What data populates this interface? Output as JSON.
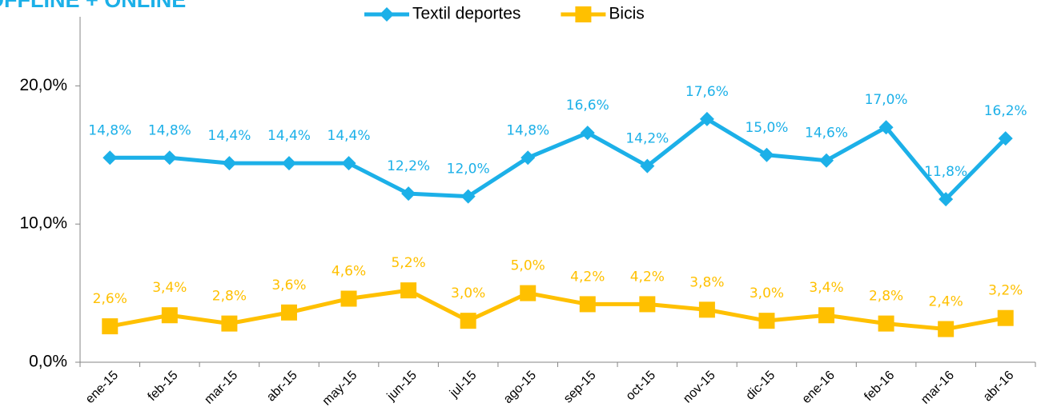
{
  "chart_data": {
    "type": "line",
    "title": "OFFLINE + ONLINE",
    "categories": [
      "ene-15",
      "feb-15",
      "mar-15",
      "abr-15",
      "may-15",
      "jun-15",
      "jul-15",
      "ago-15",
      "sep-15",
      "oct-15",
      "nov-15",
      "dic-15",
      "ene-16",
      "feb-16",
      "mar-16",
      "abr-16"
    ],
    "series": [
      {
        "name": "Textil deportes",
        "color": "#1cb0e8",
        "values": [
          14.8,
          14.8,
          14.4,
          14.4,
          14.4,
          12.2,
          12.0,
          14.8,
          16.6,
          14.2,
          17.6,
          15.0,
          14.6,
          17.0,
          11.8,
          16.2
        ],
        "value_labels": [
          "14,8%",
          "14,8%",
          "14,4%",
          "14,4%",
          "14,4%",
          "12,2%",
          "12,0%",
          "14,8%",
          "16,6%",
          "14,2%",
          "17,6%",
          "15,0%",
          "14,6%",
          "17,0%",
          "11,8%",
          "16,2%"
        ]
      },
      {
        "name": "Bicis",
        "color": "#ffc000",
        "values": [
          2.6,
          3.4,
          2.8,
          3.6,
          4.6,
          5.2,
          3.0,
          5.0,
          4.2,
          4.2,
          3.8,
          3.0,
          3.4,
          2.8,
          2.4,
          3.2
        ],
        "value_labels": [
          "2,6%",
          "3,4%",
          "2,8%",
          "3,6%",
          "4,6%",
          "5,2%",
          "3,0%",
          "5,0%",
          "4,2%",
          "4,2%",
          "3,8%",
          "3,0%",
          "3,4%",
          "2,8%",
          "2,4%",
          "3,2%"
        ]
      }
    ],
    "ylim": [
      0,
      25
    ],
    "yticks": [
      {
        "value": 0,
        "label": "0,0%"
      },
      {
        "value": 10,
        "label": "10,0%"
      },
      {
        "value": 20,
        "label": "20,0%"
      }
    ],
    "legend": "top"
  }
}
